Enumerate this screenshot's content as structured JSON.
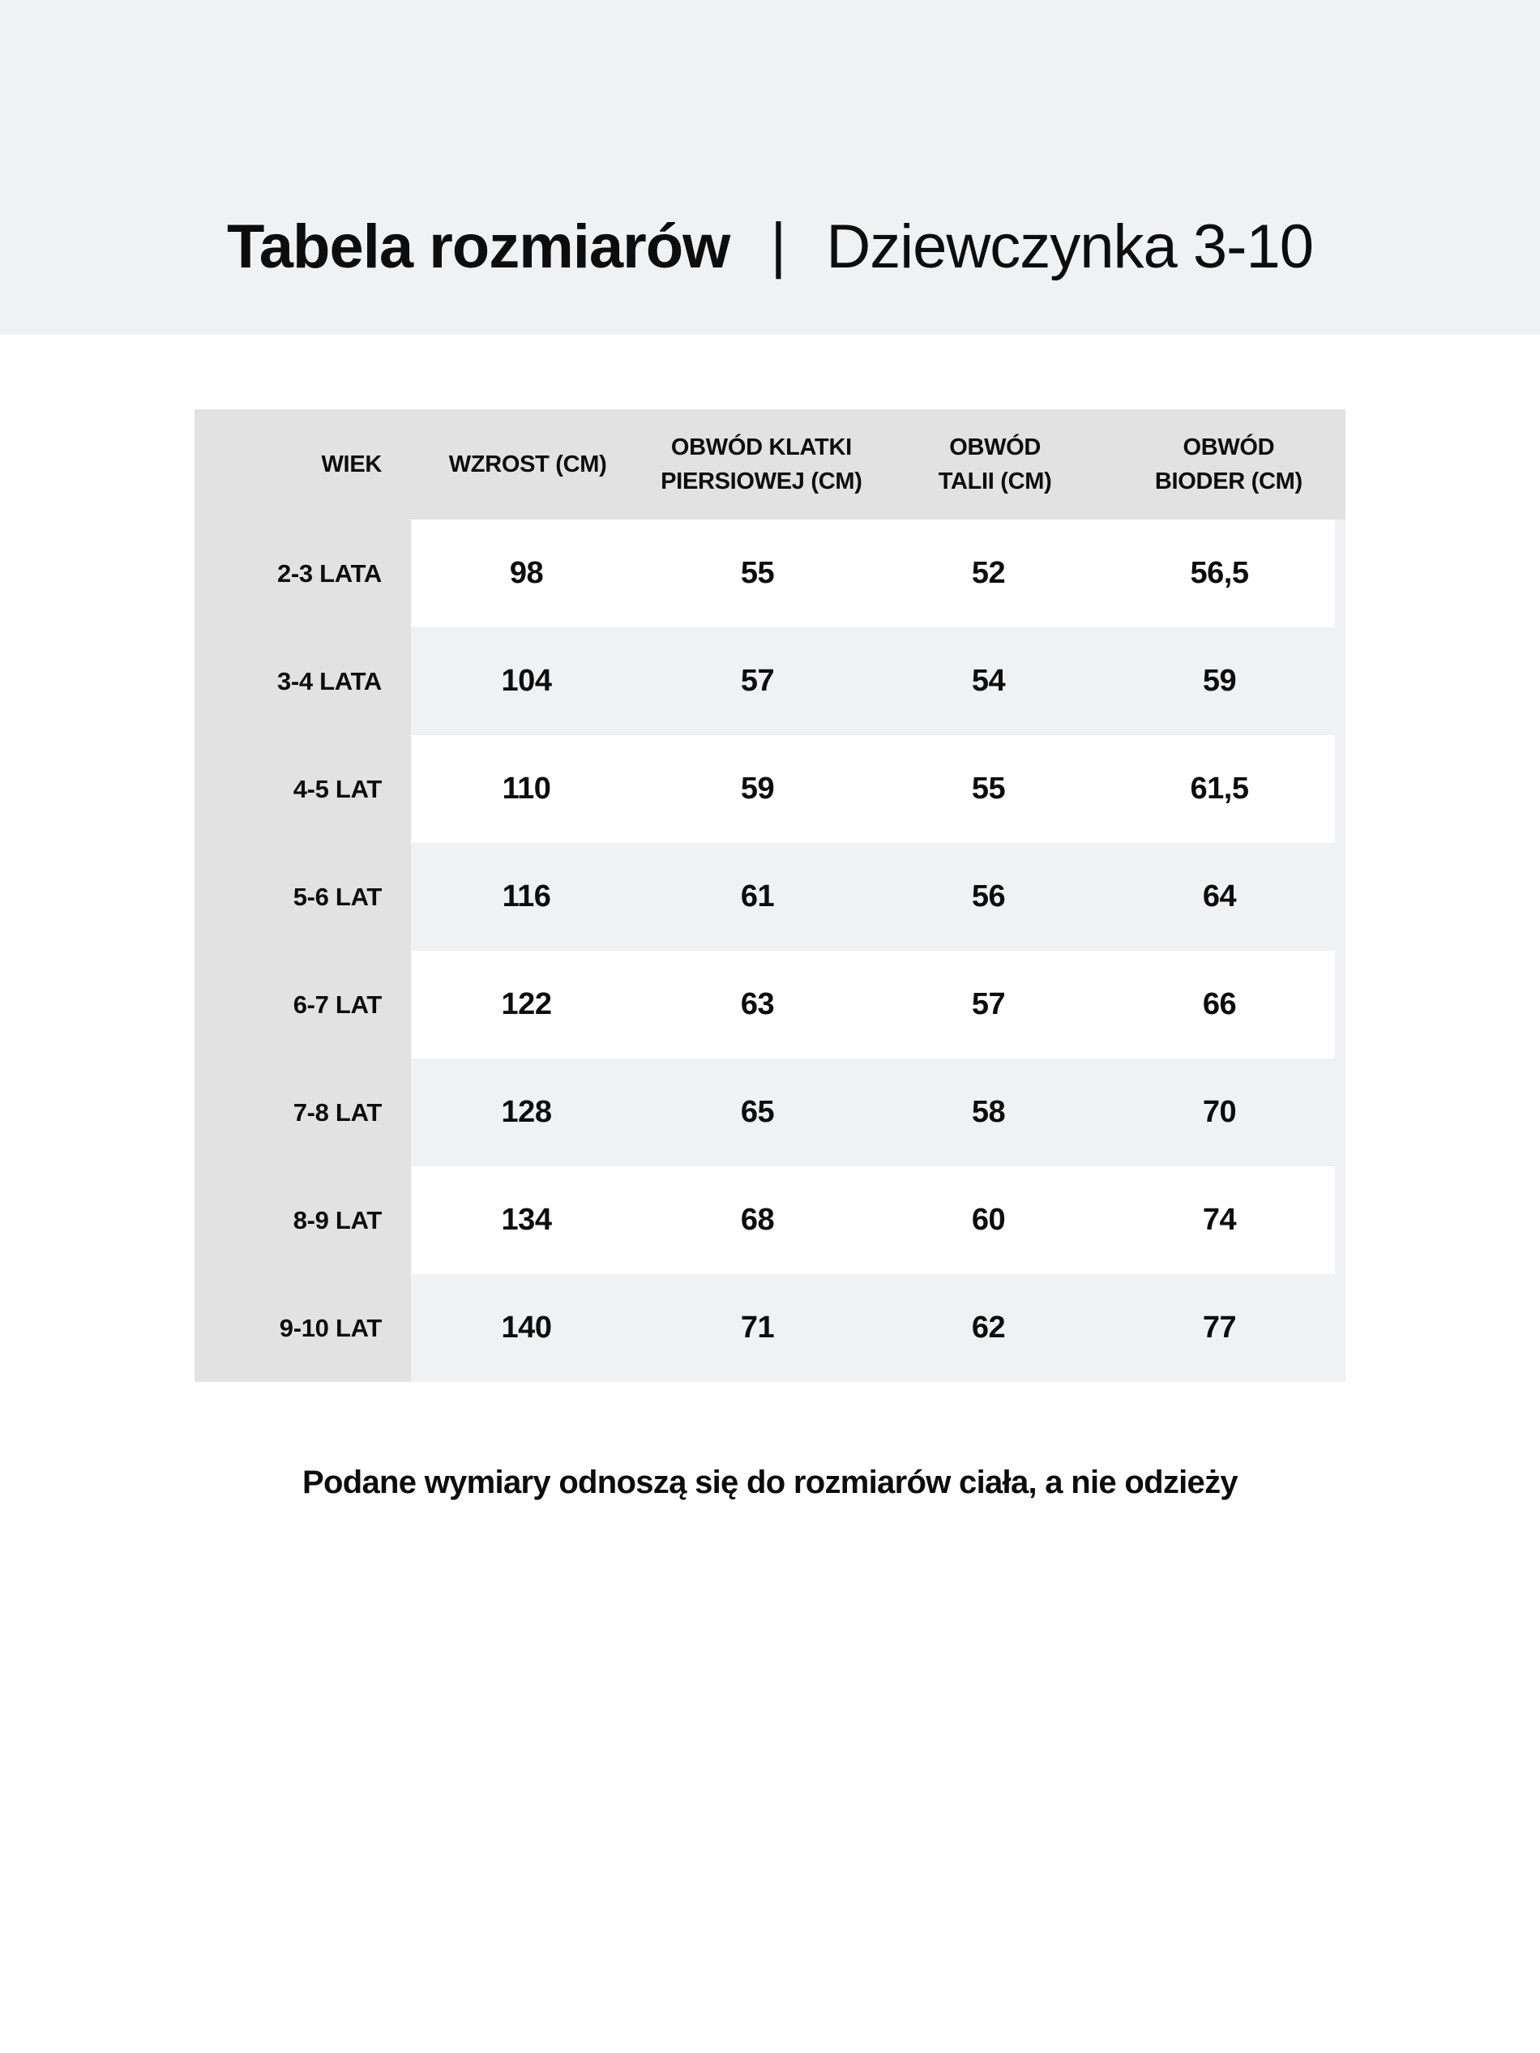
{
  "title": {
    "bold": "Tabela rozmiarów",
    "separator": "|",
    "regular": "Dziewczynka 3-10"
  },
  "table": {
    "headers": [
      "WIEK",
      "WZROST (CM)",
      "OBWÓD KLATKI\nPIERSIOWEJ (CM)",
      "OBWÓD\nTALII (CM)",
      "OBWÓD\nBIODER (CM)"
    ],
    "rows": [
      {
        "label": "2-3 LATA",
        "values": [
          "98",
          "55",
          "52",
          "56,5"
        ]
      },
      {
        "label": "3-4 LATA",
        "values": [
          "104",
          "57",
          "54",
          "59"
        ]
      },
      {
        "label": "4-5 LAT",
        "values": [
          "110",
          "59",
          "55",
          "61,5"
        ]
      },
      {
        "label": "5-6 LAT",
        "values": [
          "116",
          "61",
          "56",
          "64"
        ]
      },
      {
        "label": "6-7 LAT",
        "values": [
          "122",
          "63",
          "57",
          "66"
        ]
      },
      {
        "label": "7-8 LAT",
        "values": [
          "128",
          "65",
          "58",
          "70"
        ]
      },
      {
        "label": "8-9 LAT",
        "values": [
          "134",
          "68",
          "60",
          "74"
        ]
      },
      {
        "label": "9-10 LAT",
        "values": [
          "140",
          "71",
          "62",
          "77"
        ]
      }
    ]
  },
  "footnote": "Podane wymiary odnoszą się do rozmiarów ciała, a nie odzieży",
  "colors": {
    "band_background": "#f0f1f2",
    "header_column_background": "#e2e2e2",
    "alt_row_background": "#f0f1f2",
    "row_background": "#ffffff",
    "text": "#0d0d0d"
  }
}
